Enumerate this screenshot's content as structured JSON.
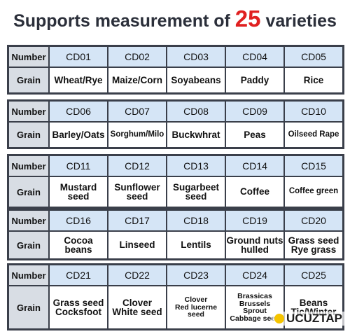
{
  "title": {
    "before": "Supports measurement of",
    "number": "25",
    "after": "varieties"
  },
  "blocks": [
    {
      "header_label": "Number",
      "row_label": "Grain",
      "codes": [
        "CD01",
        "CD02",
        "CD03",
        "CD04",
        "CD05"
      ],
      "grains": [
        "Wheat/Rye",
        "Maize/Corn",
        "Soyabeans",
        "Paddy",
        "Rice"
      ]
    },
    {
      "header_label": "Number",
      "row_label": "Grain",
      "codes": [
        "CD06",
        "CD07",
        "CD08",
        "CD09",
        "CD10"
      ],
      "grains": [
        "Barley/Oats",
        "Sorghum/Milo",
        "Buckwhrat",
        "Peas",
        "Oilseed Rape"
      ]
    },
    {
      "header_label": "Number",
      "row_label": "Grain",
      "codes": [
        "CD11",
        "CD12",
        "CD13",
        "CD14",
        "CD15"
      ],
      "grains": [
        "Mustard\nseed",
        "Sunflower\nseed",
        "Sugarbeet\nseed",
        "Coffee",
        "Coffee green"
      ]
    },
    {
      "header_label": "Number",
      "row_label": "Grain",
      "codes": [
        "CD16",
        "CD17",
        "CD18",
        "CD19",
        "CD20"
      ],
      "grains": [
        "Cocoa beans",
        "Linseed",
        "Lentils",
        "Ground nuts\nhulled",
        "Grass seed\nRye grass"
      ]
    },
    {
      "header_label": "Number",
      "row_label": "Grain",
      "codes": [
        "CD21",
        "CD22",
        "CD23",
        "CD24",
        "CD25"
      ],
      "grains": [
        "Grass seed\nCocksfoot",
        "Clover\nWhite seed",
        "Clover\nRed lucerne\nseed",
        "Brassicas\nBrussels\nSprout\nCabbage seed",
        "Beans\nTic/Winter"
      ]
    }
  ],
  "watermark": "UCUZTAP"
}
